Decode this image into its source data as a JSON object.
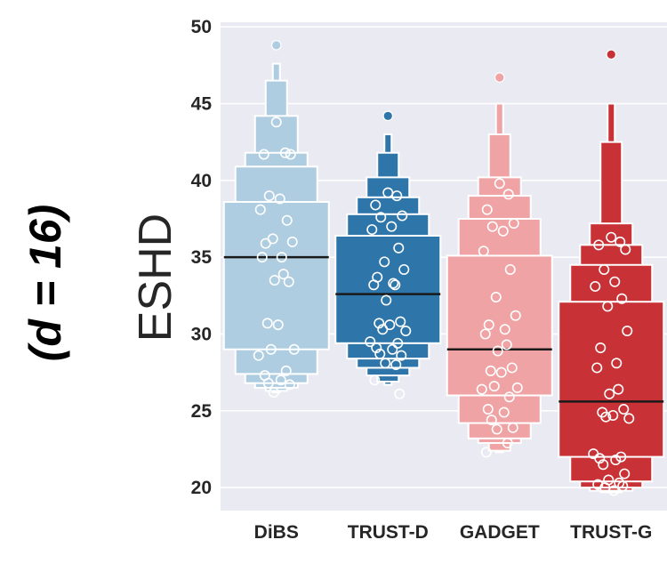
{
  "side_label": "(d = 16)",
  "chart_data": {
    "type": "boxenplot",
    "ylabel": "ESHD",
    "ylim": [
      18.5,
      50.3
    ],
    "yticks": [
      20,
      25,
      30,
      35,
      40,
      45,
      50
    ],
    "grid": true,
    "categories": [
      "DiBS",
      "TRUST-D",
      "GADGET",
      "TRUST-G"
    ],
    "series": [
      {
        "color": "#aecde0",
        "edge": "#aecde0",
        "dot": "#aecde0",
        "median": 35.0,
        "boxes": [
          [
            29.0,
            38.6
          ],
          [
            27.4,
            40.9
          ],
          [
            26.8,
            41.8
          ],
          [
            26.5,
            44.2
          ],
          [
            26.3,
            46.5
          ],
          [
            26.2,
            47.6
          ]
        ],
        "outliers": [
          48.8
        ],
        "points": [
          43.8,
          41.8,
          41.7,
          41.7,
          39.0,
          38.8,
          38.1,
          37.4,
          36.2,
          36.0,
          35.9,
          35.0,
          35.0,
          33.9,
          33.5,
          33.4,
          30.7,
          30.6,
          29.0,
          29.0,
          28.6,
          27.6,
          27.3,
          27.0,
          26.8,
          26.7,
          26.2
        ]
      },
      {
        "color": "#2e75aa",
        "edge": "#5889b8",
        "dot": "#2e75aa",
        "median": 32.6,
        "boxes": [
          [
            29.4,
            36.4
          ],
          [
            28.4,
            37.8
          ],
          [
            27.8,
            38.9
          ],
          [
            27.3,
            40.2
          ],
          [
            26.9,
            41.8
          ],
          [
            26.7,
            43.0
          ]
        ],
        "outliers": [
          44.2
        ],
        "points": [
          39.2,
          39.0,
          38.4,
          37.7,
          37.6,
          37.0,
          36.8,
          35.6,
          34.7,
          34.2,
          33.7,
          33.3,
          33.2,
          33.2,
          32.2,
          30.8,
          30.7,
          30.6,
          30.3,
          30.2,
          29.5,
          29.4,
          29.1,
          29.0,
          28.7,
          28.6,
          28.1,
          28.0,
          27.0,
          26.1
        ]
      },
      {
        "color": "#f0a3a4",
        "edge": "#f0a3a4",
        "dot": "#f0a3a4",
        "median": 29.0,
        "boxes": [
          [
            26.0,
            35.1
          ],
          [
            24.2,
            37.5
          ],
          [
            23.2,
            39.0
          ],
          [
            22.9,
            40.2
          ],
          [
            22.4,
            43.0
          ],
          [
            22.3,
            45.0
          ]
        ],
        "outliers": [
          46.7
        ],
        "points": [
          39.8,
          39.1,
          38.1,
          37.2,
          37.0,
          36.7,
          35.4,
          34.2,
          32.4,
          31.2,
          30.6,
          30.3,
          30.0,
          29.3,
          28.9,
          27.8,
          27.6,
          27.5,
          26.6,
          26.5,
          26.4,
          25.9,
          25.1,
          24.9,
          24.4,
          23.9,
          23.8,
          22.9,
          22.3
        ]
      },
      {
        "color": "#c83236",
        "edge": "#d85b5b",
        "dot": "#c83236",
        "median": 25.6,
        "boxes": [
          [
            22.0,
            32.1
          ],
          [
            20.4,
            34.5
          ],
          [
            20.0,
            35.8
          ],
          [
            19.8,
            37.2
          ],
          [
            19.7,
            42.5
          ],
          [
            19.7,
            45.0
          ]
        ],
        "outliers": [
          48.2
        ],
        "points": [
          36.3,
          36.0,
          35.8,
          35.5,
          34.2,
          33.4,
          33.1,
          32.3,
          31.8,
          30.2,
          29.1,
          28.1,
          27.8,
          26.4,
          26.1,
          25.1,
          24.9,
          24.7,
          24.6,
          24.5,
          22.2,
          22.0,
          21.9,
          21.8,
          21.5,
          20.9,
          20.5,
          20.3,
          20.2,
          20.1,
          20.0,
          19.8
        ]
      }
    ]
  }
}
